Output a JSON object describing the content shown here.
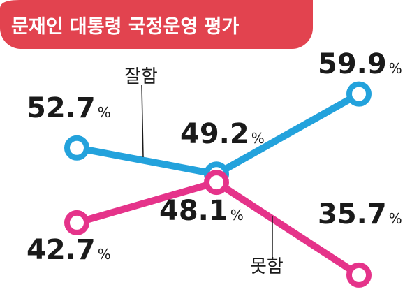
{
  "title": "문재인 대통령 국정운영 평가",
  "colors": {
    "title_bg": "#e2434f",
    "good": "#23a2dc",
    "bad": "#e5338a",
    "text": "#1a1a1a"
  },
  "chart_data": {
    "type": "line",
    "x": [
      1,
      2,
      3
    ],
    "unit": "%",
    "series": [
      {
        "name": "잘함",
        "values": [
          52.7,
          49.2,
          59.9
        ],
        "color": "#23a2dc"
      },
      {
        "name": "못함",
        "values": [
          42.7,
          48.1,
          35.7
        ],
        "color": "#e5338a"
      }
    ],
    "labels": {
      "good": [
        "52.7",
        "49.2",
        "59.9"
      ],
      "bad": [
        "42.7",
        "48.1",
        "35.7"
      ]
    }
  }
}
